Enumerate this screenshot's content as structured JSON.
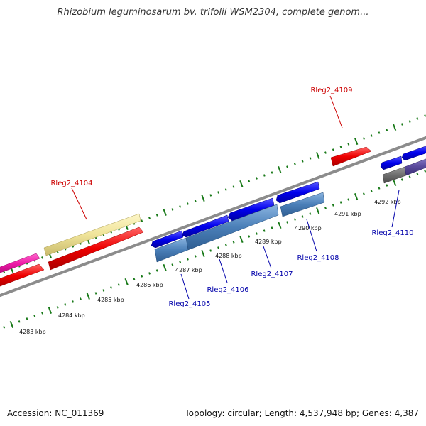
{
  "title": "Rhizobium leguminosarum bv. trifolii WSM2304, complete genom...",
  "footer": {
    "accession": "Accession: NC_011369",
    "stats": "Topology: circular; Length: 4,537,948 bp; Genes: 4,387"
  },
  "colors": {
    "forward_track": "#ff1a1a",
    "reverse_track": "#1a1aee",
    "backbone": "#8c8c8c",
    "ticks": "#1a7a1a",
    "highlight_label": "#cc0000",
    "link_label": "#0000aa"
  },
  "scale": {
    "ticks": [
      {
        "label": "4283 kbp"
      },
      {
        "label": "4284 kbp"
      },
      {
        "label": "4285 kbp"
      },
      {
        "label": "4286 kbp"
      },
      {
        "label": "4287 kbp"
      },
      {
        "label": "4288 kbp"
      },
      {
        "label": "4289 kbp"
      },
      {
        "label": "4290 kbp"
      },
      {
        "label": "4291 kbp"
      },
      {
        "label": "4292 kbp"
      }
    ]
  },
  "genes": {
    "rleg2_4104": "Rleg2_4104",
    "rleg2_4105": "Rleg2_4105",
    "rleg2_4106": "Rleg2_4106",
    "rleg2_4107": "Rleg2_4107",
    "rleg2_4108": "Rleg2_4108",
    "rleg2_4109": "Rleg2_4109",
    "rleg2_4110": "Rleg2_4110"
  }
}
